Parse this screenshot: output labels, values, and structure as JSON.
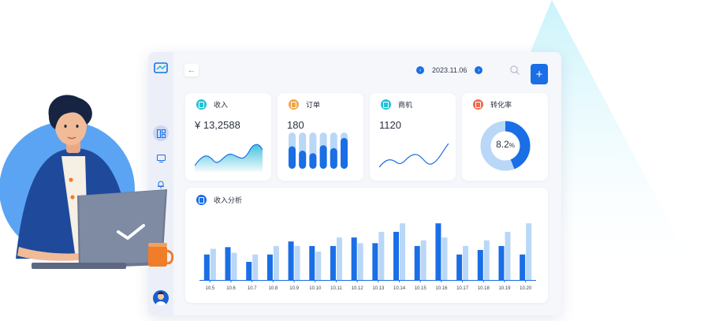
{
  "colors": {
    "accent": "#1a6ee6",
    "light_bar": "#b9d7f7",
    "teal": "#22c3d6",
    "orange": "#f0a64a",
    "coral": "#f26a4b"
  },
  "header": {
    "back_icon": "←",
    "prev_icon": "‹",
    "next_icon": "›",
    "date": "2023.11.06",
    "search_icon": "search-icon",
    "add_label": "+"
  },
  "sidebar": {
    "items": [
      "dashboard-icon",
      "screen-icon",
      "bell-icon"
    ]
  },
  "cards": [
    {
      "title": "收入",
      "value": "¥ 13,2588"
    },
    {
      "title": "订单",
      "value": "180"
    },
    {
      "title": "商机",
      "value": "1120"
    },
    {
      "title": "转化率",
      "value": "8.2",
      "unit": "%"
    }
  ],
  "conversion_rate": 8.2,
  "orders_bars": [
    {
      "track": 1.0,
      "fill": 0.62
    },
    {
      "track": 1.0,
      "fill": 0.5
    },
    {
      "track": 1.0,
      "fill": 0.43
    },
    {
      "track": 1.0,
      "fill": 0.65
    },
    {
      "track": 1.0,
      "fill": 0.57
    },
    {
      "track": 1.0,
      "fill": 0.85
    }
  ],
  "analysis": {
    "title": "收入分析"
  },
  "chart_data": {
    "type": "bar",
    "categories": [
      "10.5",
      "10.6",
      "10.7",
      "10.8",
      "10.9",
      "10.10",
      "10.11",
      "10.12",
      "10.13",
      "10.14",
      "10.15",
      "10.16",
      "10.17",
      "10.18",
      "10.19",
      "10.20"
    ],
    "series": [
      {
        "values": [
          45,
          58,
          32,
          45,
          68,
          60,
          60,
          75,
          65,
          85,
          60,
          100,
          45,
          53,
          60,
          45
        ]
      },
      {
        "values": [
          55,
          48,
          45,
          60,
          60,
          50,
          75,
          65,
          85,
          100,
          70,
          75,
          60,
          70,
          85,
          100
        ]
      }
    ],
    "ylim": [
      0,
      110
    ],
    "grid": false
  }
}
